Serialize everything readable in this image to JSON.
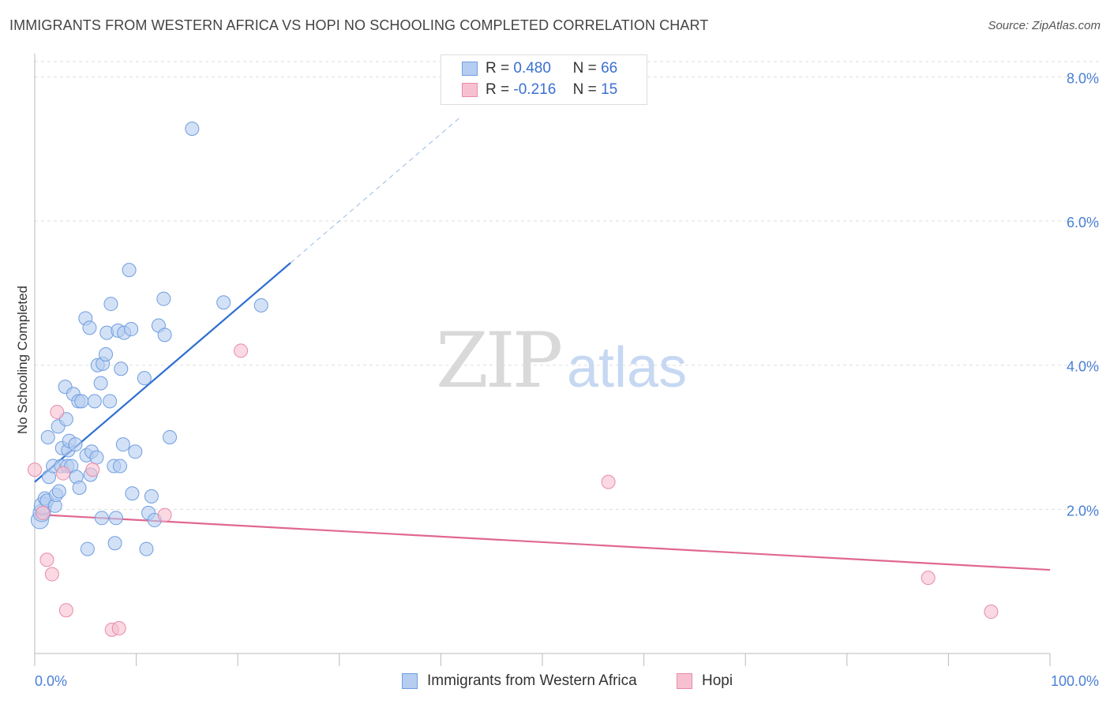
{
  "header": {
    "title": "IMMIGRANTS FROM WESTERN AFRICA VS HOPI NO SCHOOLING COMPLETED CORRELATION CHART",
    "source": "Source: ZipAtlas.com"
  },
  "watermark": {
    "zip": "ZIP",
    "atlas": "atlas"
  },
  "legend": {
    "rows": [
      {
        "r_label": "R =",
        "r_value": "0.480",
        "n_label": "N =",
        "n_value": "66"
      },
      {
        "r_label": "R =",
        "r_value": "-0.216",
        "n_label": "N =",
        "n_value": "15"
      }
    ]
  },
  "bottom_legend": {
    "series1": "Immigrants from Western Africa",
    "series2": "Hopi"
  },
  "colors": {
    "blue_fill": "#b5cdf0",
    "blue_stroke": "#6f9ee0",
    "blue_line": "#2f6fd0",
    "pink_fill": "#f7c0d0",
    "pink_stroke": "#e88aa8",
    "pink_line": "#e06890"
  },
  "chart_data": {
    "type": "scatter",
    "title": "IMMIGRANTS FROM WESTERN AFRICA VS HOPI NO SCHOOLING COMPLETED CORRELATION CHART",
    "xlabel": "",
    "ylabel": "No Schooling Completed",
    "xlim": [
      0,
      100
    ],
    "ylim": [
      0,
      8.3
    ],
    "x_tick_labels": [
      "0.0%",
      "100.0%"
    ],
    "y_ticks": [
      2,
      4,
      6,
      8
    ],
    "y_tick_labels": [
      "2.0%",
      "4.0%",
      "6.0%",
      "8.0%"
    ],
    "series": [
      {
        "name": "Immigrants from Western Africa",
        "R": 0.48,
        "N": 66,
        "points": [
          [
            0.5,
            1.85
          ],
          [
            0.7,
            1.95
          ],
          [
            0.8,
            2.05
          ],
          [
            1.0,
            2.15
          ],
          [
            1.2,
            2.12
          ],
          [
            1.4,
            2.45
          ],
          [
            1.3,
            3.0
          ],
          [
            1.8,
            2.6
          ],
          [
            2.0,
            2.05
          ],
          [
            2.1,
            2.2
          ],
          [
            2.3,
            3.15
          ],
          [
            2.4,
            2.25
          ],
          [
            2.6,
            2.6
          ],
          [
            2.7,
            2.85
          ],
          [
            3.0,
            3.7
          ],
          [
            3.1,
            3.25
          ],
          [
            3.2,
            2.6
          ],
          [
            3.3,
            2.82
          ],
          [
            3.4,
            2.95
          ],
          [
            3.6,
            2.6
          ],
          [
            3.8,
            3.6
          ],
          [
            4.0,
            2.9
          ],
          [
            4.1,
            2.45
          ],
          [
            4.3,
            3.5
          ],
          [
            4.4,
            2.3
          ],
          [
            4.6,
            3.5
          ],
          [
            5.0,
            4.65
          ],
          [
            5.1,
            2.75
          ],
          [
            5.2,
            1.45
          ],
          [
            5.4,
            4.52
          ],
          [
            5.5,
            2.48
          ],
          [
            5.6,
            2.8
          ],
          [
            5.9,
            3.5
          ],
          [
            6.1,
            2.72
          ],
          [
            6.2,
            4.0
          ],
          [
            6.5,
            3.75
          ],
          [
            6.6,
            1.88
          ],
          [
            6.7,
            4.02
          ],
          [
            7.0,
            4.15
          ],
          [
            7.1,
            4.45
          ],
          [
            7.4,
            3.5
          ],
          [
            7.5,
            4.85
          ],
          [
            7.8,
            2.6
          ],
          [
            7.9,
            1.53
          ],
          [
            8.0,
            1.88
          ],
          [
            8.2,
            4.48
          ],
          [
            8.4,
            2.6
          ],
          [
            8.5,
            3.95
          ],
          [
            8.7,
            2.9
          ],
          [
            8.8,
            4.45
          ],
          [
            9.3,
            5.32
          ],
          [
            9.5,
            4.5
          ],
          [
            9.6,
            2.22
          ],
          [
            9.9,
            2.8
          ],
          [
            10.8,
            3.82
          ],
          [
            11.0,
            1.45
          ],
          [
            11.2,
            1.95
          ],
          [
            11.5,
            2.18
          ],
          [
            11.8,
            1.85
          ],
          [
            12.2,
            4.55
          ],
          [
            12.7,
            4.92
          ],
          [
            12.8,
            4.42
          ],
          [
            13.3,
            3.0
          ],
          [
            15.5,
            7.28
          ],
          [
            18.6,
            4.87
          ],
          [
            22.3,
            4.83
          ]
        ]
      },
      {
        "name": "Hopi",
        "R": -0.216,
        "N": 15,
        "points": [
          [
            0.0,
            2.55
          ],
          [
            0.8,
            1.95
          ],
          [
            1.2,
            1.3
          ],
          [
            1.7,
            1.1
          ],
          [
            2.2,
            3.35
          ],
          [
            2.8,
            2.5
          ],
          [
            3.1,
            0.6
          ],
          [
            5.7,
            2.55
          ],
          [
            7.6,
            0.33
          ],
          [
            8.3,
            0.35
          ],
          [
            12.8,
            1.92
          ],
          [
            20.3,
            4.2
          ],
          [
            56.5,
            2.38
          ],
          [
            88.0,
            1.05
          ],
          [
            94.2,
            0.58
          ]
        ]
      }
    ],
    "trend_lines": [
      {
        "series": "Immigrants from Western Africa",
        "x0": 0,
        "y0": 2.38,
        "x1": 25.2,
        "y1": 5.42,
        "style": "solid"
      },
      {
        "series": "Immigrants from Western Africa",
        "x0": 25.2,
        "y0": 5.42,
        "x1": 42.0,
        "y1": 7.45,
        "style": "dashed"
      },
      {
        "series": "Hopi",
        "x0": 0,
        "y0": 1.93,
        "x1": 100,
        "y1": 1.16,
        "style": "solid"
      }
    ]
  }
}
